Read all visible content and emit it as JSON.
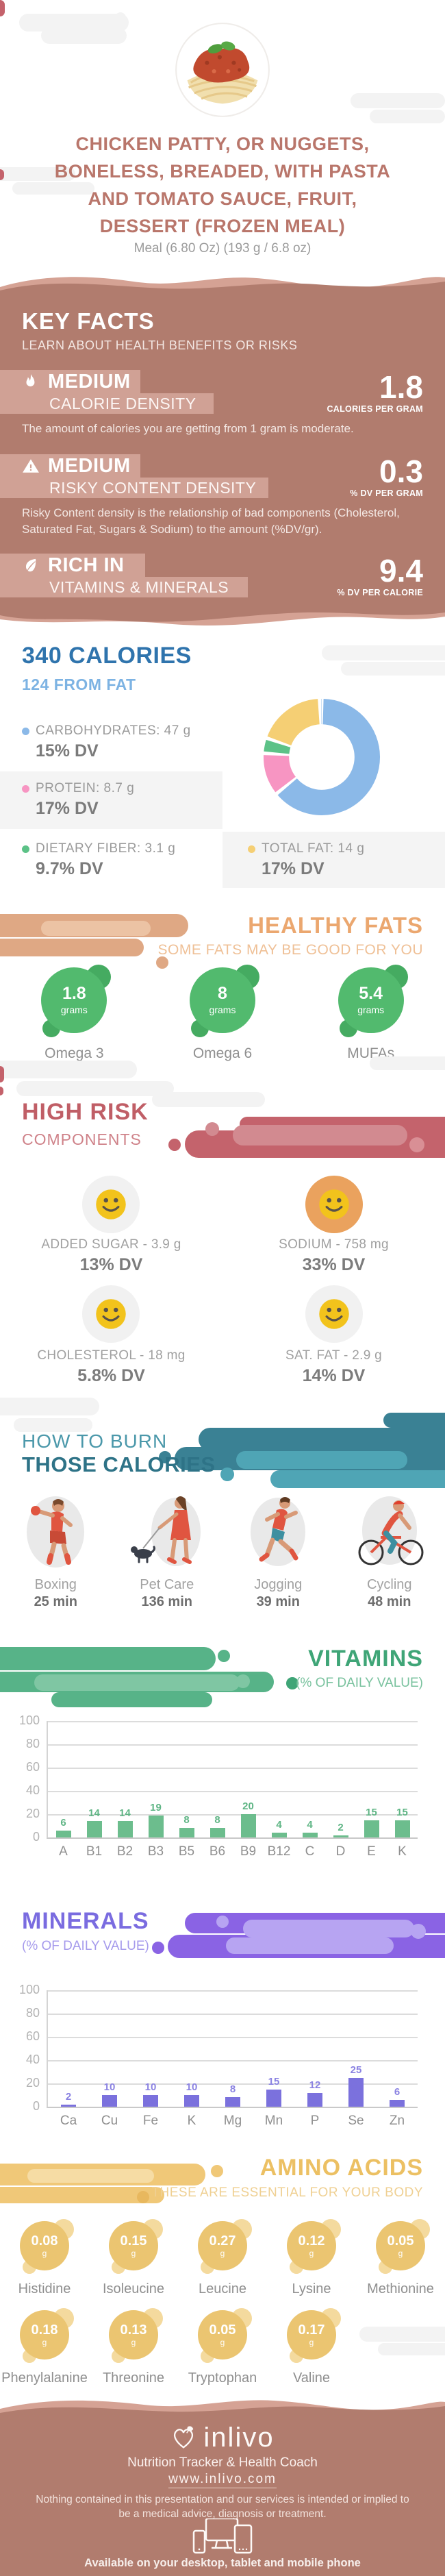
{
  "header": {
    "title_lines": [
      "CHICKEN PATTY, OR NUGGETS,",
      "BONELESS, BREADED, WITH PASTA",
      "AND TOMATO SAUCE, FRUIT,",
      "DESSERT (FROZEN MEAL)"
    ],
    "subtitle": "Meal (6.80 Oz) (193 g / 6.8 oz)"
  },
  "key_facts": {
    "title": "KEY FACTS",
    "subtitle": "LEARN ABOUT HEALTH BENEFITS OR RISKS",
    "facts": [
      {
        "icon": "flame-icon",
        "level": "MEDIUM",
        "name": "CALORIE DENSITY",
        "value": "1.8",
        "unit": "CALORIES PER GRAM",
        "description": "The amount of calories you are getting from 1 gram is moderate."
      },
      {
        "icon": "warning-icon",
        "level": "MEDIUM",
        "name": "RISKY CONTENT DENSITY",
        "value": "0.3",
        "unit": "% DV PER GRAM",
        "description": "Risky Content density is the relationship of bad components (Cholesterol, Saturated Fat, Sugars & Sodium) to the amount (%DV/gr)."
      },
      {
        "icon": "leaf-icon",
        "level": "RICH IN",
        "name": "VITAMINS & MINERALS",
        "value": "9.4",
        "unit": "% DV PER CALORIE",
        "description": ""
      }
    ]
  },
  "calories": {
    "title": "340 CALORIES",
    "subtitle": "124 FROM FAT",
    "legend": [
      {
        "label": "CARBOHYDRATES: 47 g",
        "dv": "15% DV",
        "color": "#8bb9e8"
      },
      {
        "label": "PROTEIN: 8.7 g",
        "dv": "17% DV",
        "color": "#f795c2"
      },
      {
        "label": "DIETARY FIBER: 3.1 g",
        "dv": "9.7% DV",
        "color": "#5cc287"
      },
      {
        "label": "TOTAL FAT: 14 g",
        "dv": "17% DV",
        "color": "#f5cf74"
      }
    ]
  },
  "chart_data": [
    {
      "type": "pie",
      "title": "Calorie source breakdown (donut)",
      "labels": [
        "Carbohydrates",
        "Protein",
        "Dietary Fiber",
        "Total Fat"
      ],
      "values_g": [
        47,
        8.7,
        3.1,
        14
      ],
      "dv": [
        "15% DV",
        "17% DV",
        "9.7% DV",
        "17% DV"
      ],
      "colors": [
        "#8bb9e8",
        "#f795c2",
        "#5cc287",
        "#f5cf74"
      ]
    },
    {
      "type": "bar",
      "title": "VITAMINS",
      "subtitle": "(% OF DAILY VALUE)",
      "categories": [
        "A",
        "B1",
        "B2",
        "B3",
        "B5",
        "B6",
        "B9",
        "B12",
        "C",
        "D",
        "E",
        "K"
      ],
      "values": [
        6,
        14,
        14,
        19,
        8,
        8,
        20,
        4,
        4,
        2,
        15,
        15
      ],
      "ylim": [
        0,
        100
      ],
      "yticks": [
        0,
        20,
        40,
        60,
        80,
        100
      ],
      "bar_color": "#6cbd8d",
      "value_label_color": "#5fb585",
      "grid": true,
      "legend_position": "none"
    },
    {
      "type": "bar",
      "title": "MINERALS",
      "subtitle": "(% OF DAILY VALUE)",
      "categories": [
        "Ca",
        "Cu",
        "Fe",
        "K",
        "Mg",
        "Mn",
        "P",
        "Se",
        "Zn"
      ],
      "values": [
        2,
        10,
        10,
        10,
        8,
        15,
        12,
        25,
        6
      ],
      "ylim": [
        0,
        100
      ],
      "yticks": [
        0,
        20,
        40,
        60,
        80,
        100
      ],
      "bar_color": "#7b71dd",
      "value_label_color": "#8a82e2",
      "grid": true,
      "legend_position": "none"
    }
  ],
  "healthy_fats": {
    "title": "HEALTHY FATS",
    "subtitle": "SOME FATS MAY BE GOOD FOR YOU",
    "items": [
      {
        "value": "1.8",
        "unit": "grams",
        "label": "Omega 3"
      },
      {
        "value": "8",
        "unit": "grams",
        "label": "Omega 6"
      },
      {
        "value": "5.4",
        "unit": "grams",
        "label": "MUFAs"
      }
    ]
  },
  "high_risk": {
    "title": "HIGH RISK",
    "subtitle": "COMPONENTS",
    "items": [
      {
        "label": "ADDED SUGAR - 3.9 g",
        "dv": "13% DV",
        "icon": "smiley-icon",
        "bg_color": "#f1f1f1"
      },
      {
        "label": "SODIUM - 758 mg",
        "dv": "33% DV",
        "icon": "smiley-icon",
        "bg_color": "#eaa25e"
      },
      {
        "label": "CHOLESTEROL - 18 mg",
        "dv": "5.8% DV",
        "icon": "smiley-icon",
        "bg_color": "#f1f1f1"
      },
      {
        "label": "SAT. FAT - 2.9 g",
        "dv": "14% DV",
        "icon": "smiley-icon",
        "bg_color": "#f1f1f1"
      }
    ]
  },
  "burn": {
    "title_line1": "HOW TO BURN",
    "title_line2": "THOSE CALORIES",
    "activities": [
      {
        "label": "Boxing",
        "minutes": "25 min"
      },
      {
        "label": "Pet Care",
        "minutes": "136 min"
      },
      {
        "label": "Jogging",
        "minutes": "39 min"
      },
      {
        "label": "Cycling",
        "minutes": "48 min"
      }
    ]
  },
  "vitamins_section": {
    "title": "VITAMINS",
    "subtitle": "(% OF DAILY VALUE)"
  },
  "minerals_section": {
    "title": "MINERALS",
    "subtitle": "(% OF DAILY VALUE)"
  },
  "amino_acids": {
    "title": "AMINO ACIDS",
    "subtitle": "THESE ARE ESSENTIAL FOR YOUR BODY",
    "items": [
      {
        "value": "0.08",
        "unit": "g",
        "label": "Histidine"
      },
      {
        "value": "0.15",
        "unit": "g",
        "label": "Isoleucine"
      },
      {
        "value": "0.27",
        "unit": "g",
        "label": "Leucine"
      },
      {
        "value": "0.12",
        "unit": "g",
        "label": "Lysine"
      },
      {
        "value": "0.05",
        "unit": "g",
        "label": "Methionine"
      },
      {
        "value": "0.18",
        "unit": "g",
        "label": "Phenylalanine"
      },
      {
        "value": "0.13",
        "unit": "g",
        "label": "Threonine"
      },
      {
        "value": "0.05",
        "unit": "g",
        "label": "Tryptophan"
      },
      {
        "value": "0.17",
        "unit": "g",
        "label": "Valine"
      }
    ]
  },
  "footer": {
    "brand": "inlivo",
    "tagline": "Nutrition Tracker & Health Coach",
    "url": "www.inlivo.com",
    "disclaimer": "Nothing contained in this presentation and our services is intended or implied to be a medical advice, diagnosis or treatment.",
    "availability": "Available on your desktop, tablet and mobile phone"
  },
  "colors": {
    "section_brown": "#b17c6e",
    "wave_light": "#d5a294",
    "highlight_box": "#d0a195",
    "calories_blue": "#2f74ad",
    "fat_blue": "#7db3e3",
    "healthy_green": "#52ba6e",
    "risk_red": "#c05e66",
    "burn_teal": "#2e7387",
    "vitamin_green": "#3fa577",
    "mineral_purple": "#7a6ce0",
    "amino_gold": "#ecc063"
  }
}
